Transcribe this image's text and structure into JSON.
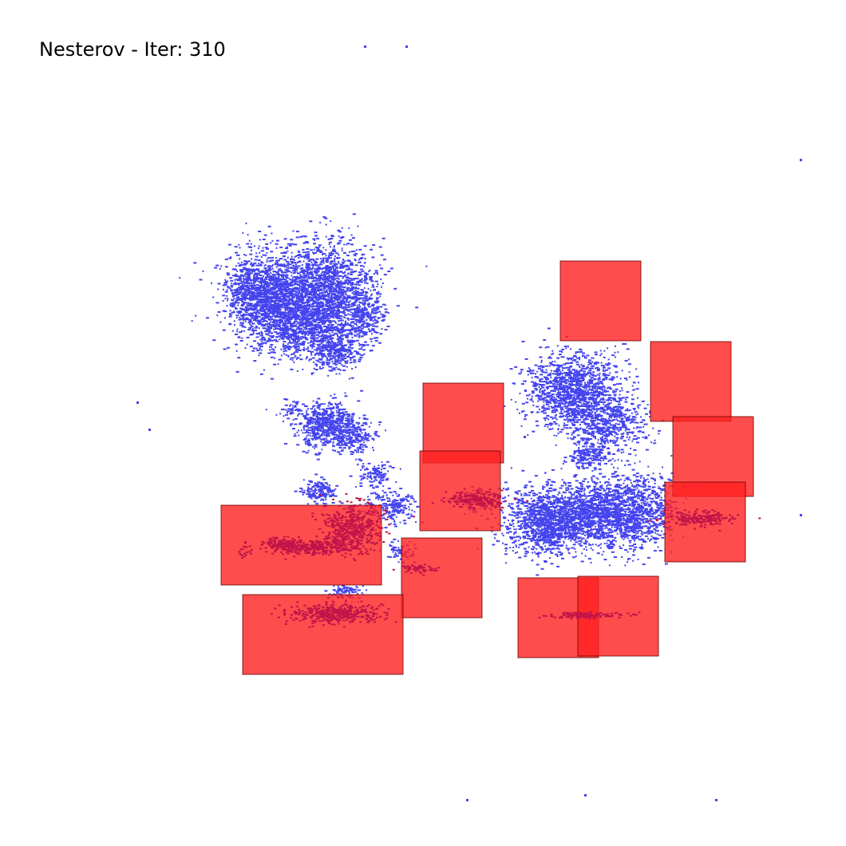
{
  "title": "Nesterov - Iter: 310",
  "colors": {
    "background": "#ffffff",
    "cell": "#4444ee",
    "macro_fill": "#ff2020",
    "macro_stroke": "#6a0000",
    "overlap_dots": "#c0144a"
  }
}
